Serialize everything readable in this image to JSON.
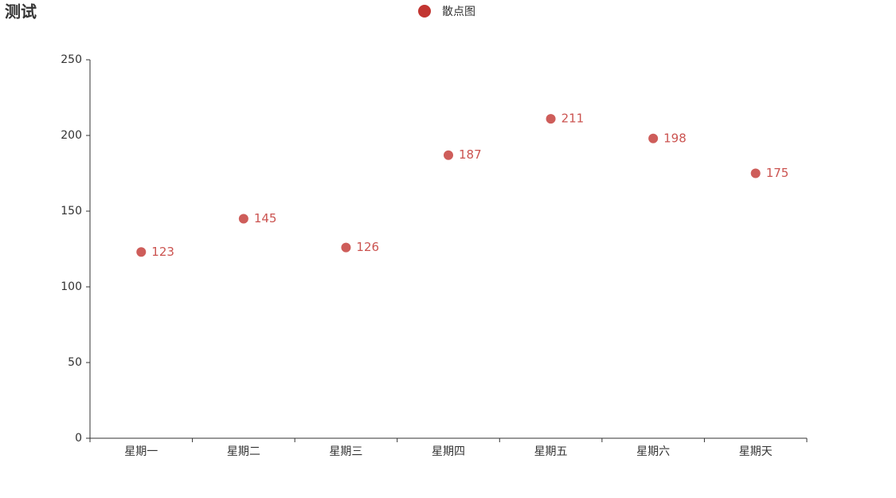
{
  "chart_data": {
    "type": "scatter",
    "title": "测试",
    "categories": [
      "星期一",
      "星期二",
      "星期三",
      "星期四",
      "星期五",
      "星期六",
      "星期天"
    ],
    "series": [
      {
        "name": "散点图",
        "color": "#c23531",
        "values": [
          123,
          145,
          126,
          187,
          211,
          198,
          175
        ]
      }
    ],
    "ylim": [
      0,
      250
    ],
    "yticks": [
      0,
      50,
      100,
      150,
      200,
      250
    ],
    "grid": false,
    "legend": "top"
  }
}
